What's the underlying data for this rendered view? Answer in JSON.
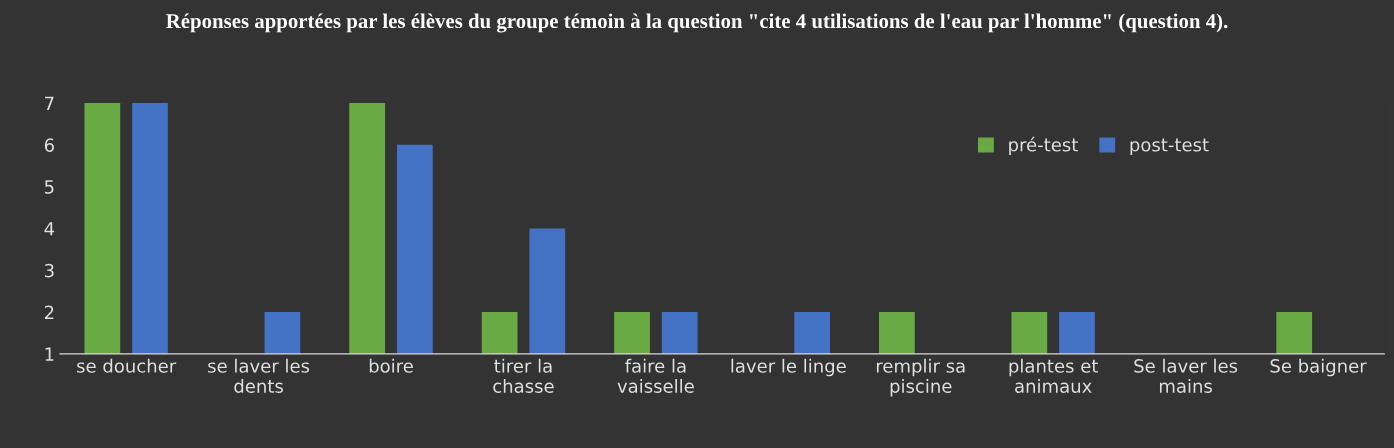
{
  "chart_data": {
    "type": "bar",
    "title": "Réponses apportées par les élèves du groupe témoin à la question \"cite 4 utilisations de l'eau par l'homme\" (question 4).",
    "categories": [
      "se doucher",
      "se laver les\ndents",
      "boire",
      "tirer la\nchasse",
      "faire la\nvaisselle",
      "laver le linge",
      "remplir sa\npiscine",
      "plantes et\nanimaux",
      "Se laver les\nmains",
      "Se baigner"
    ],
    "series": [
      {
        "name": "pré-test",
        "color": "#6aaa45",
        "values": [
          7,
          null,
          7,
          2,
          2,
          null,
          2,
          2,
          null,
          2
        ]
      },
      {
        "name": "post-test",
        "color": "#4472c4",
        "values": [
          7,
          2,
          6,
          4,
          2,
          2,
          null,
          2,
          null,
          null
        ]
      }
    ],
    "ylim": [
      1,
      7
    ],
    "yticks": [
      1,
      2,
      3,
      4,
      5,
      6,
      7
    ],
    "grid": false,
    "legend": "top right"
  }
}
